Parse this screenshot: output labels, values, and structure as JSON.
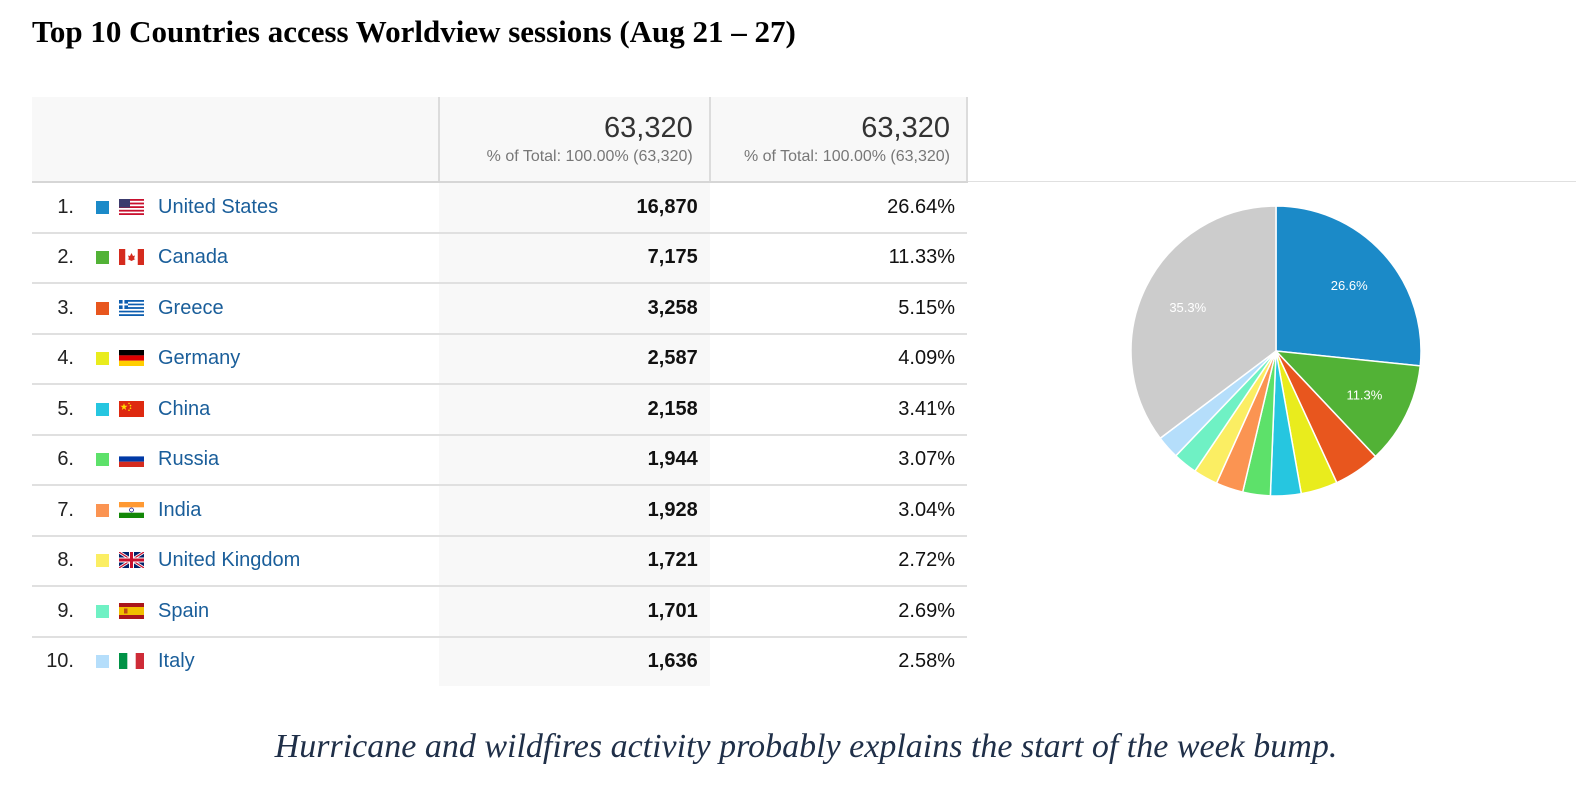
{
  "title": "Top 10 Countries access Worldview sessions (Aug 21 – 27)",
  "caption": "Hurricane and wildfires activity probably explains the start of the week bump.",
  "header": {
    "sessions_total": "63,320",
    "sessions_total_note": "% of Total: 100.00% (63,320)",
    "pct_total": "63,320",
    "pct_total_note": "% of Total: 100.00% (63,320)"
  },
  "rows": [
    {
      "rank": "1.",
      "country": "United States",
      "sessions": "16,870",
      "pct": "26.64%",
      "color": "#1b8ac8",
      "flag": "us-flag-icon"
    },
    {
      "rank": "2.",
      "country": "Canada",
      "sessions": "7,175",
      "pct": "11.33%",
      "color": "#52b236",
      "flag": "canada-flag-icon"
    },
    {
      "rank": "3.",
      "country": "Greece",
      "sessions": "3,258",
      "pct": "5.15%",
      "color": "#e8561e",
      "flag": "greece-flag-icon"
    },
    {
      "rank": "4.",
      "country": "Germany",
      "sessions": "2,587",
      "pct": "4.09%",
      "color": "#e9ec1d",
      "flag": "germany-flag-icon"
    },
    {
      "rank": "5.",
      "country": "China",
      "sessions": "2,158",
      "pct": "3.41%",
      "color": "#26c6e0",
      "flag": "china-flag-icon"
    },
    {
      "rank": "6.",
      "country": "Russia",
      "sessions": "1,944",
      "pct": "3.07%",
      "color": "#5de16a",
      "flag": "russia-flag-icon"
    },
    {
      "rank": "7.",
      "country": "India",
      "sessions": "1,928",
      "pct": "3.04%",
      "color": "#fb9452",
      "flag": "india-flag-icon"
    },
    {
      "rank": "8.",
      "country": "United Kingdom",
      "sessions": "1,721",
      "pct": "2.72%",
      "color": "#fbee63",
      "flag": "uk-flag-icon"
    },
    {
      "rank": "9.",
      "country": "Spain",
      "sessions": "1,701",
      "pct": "2.69%",
      "color": "#6ff1c4",
      "flag": "spain-flag-icon"
    },
    {
      "rank": "10.",
      "country": "Italy",
      "sessions": "1,636",
      "pct": "2.58%",
      "color": "#b5defb",
      "flag": "italy-flag-icon"
    }
  ],
  "chart_data": {
    "type": "pie",
    "categories": [
      "United States",
      "Canada",
      "Greece",
      "Germany",
      "China",
      "Russia",
      "India",
      "United Kingdom",
      "Spain",
      "Italy",
      ""
    ],
    "values": [
      26.64,
      11.33,
      5.15,
      4.09,
      3.41,
      3.07,
      3.04,
      2.72,
      2.69,
      2.58,
      35.28
    ],
    "colors": [
      "#1b8ac8",
      "#52b236",
      "#e8561e",
      "#e9ec1d",
      "#26c6e0",
      "#5de16a",
      "#fb9452",
      "#fbee63",
      "#6ff1c4",
      "#b5defb",
      "#cccccc"
    ],
    "slice_labels": [
      "26.6%",
      "11.3%",
      "",
      "",
      "",
      "",
      "",
      "",
      "",
      "",
      "35.3%"
    ],
    "label_color": "#ffffff"
  }
}
